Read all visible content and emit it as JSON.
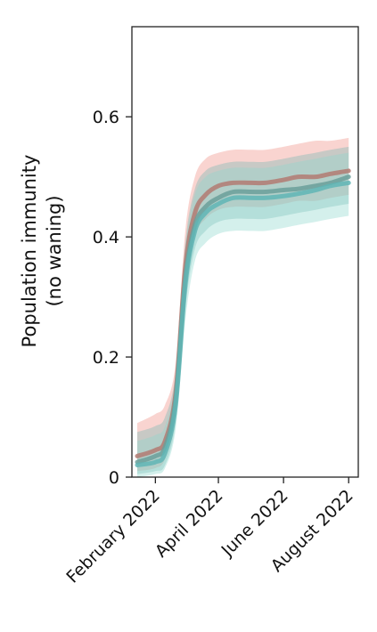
{
  "chart_data": {
    "type": "line",
    "ylabel_lines": [
      "Population immunity",
      "(no waning)"
    ],
    "xlabel": "",
    "ylim": [
      0,
      0.75
    ],
    "yticks": [
      {
        "value": 0,
        "label": "0"
      },
      {
        "value": 0.2,
        "label": "0.2"
      },
      {
        "value": 0.4,
        "label": "0.4"
      },
      {
        "value": 0.6,
        "label": "0.6"
      }
    ],
    "xticks": [
      {
        "value": "2022-02-01",
        "label": "February 2022"
      },
      {
        "value": "2022-04-01",
        "label": "April 2022"
      },
      {
        "value": "2022-06-01",
        "label": "June 2022"
      },
      {
        "value": "2022-08-01",
        "label": "August 2022"
      }
    ],
    "xlim": [
      "2022-01-10",
      "2022-08-10"
    ],
    "grid": false,
    "legend": "none",
    "series": [
      {
        "color": "#f08f84",
        "line_color": "#b27a72",
        "x": [
          "2022-01-15",
          "2022-02-01",
          "2022-02-10",
          "2022-02-20",
          "2022-03-01",
          "2022-03-10",
          "2022-03-20",
          "2022-04-01",
          "2022-04-15",
          "2022-05-01",
          "2022-05-15",
          "2022-06-01",
          "2022-06-15",
          "2022-07-01",
          "2022-07-15",
          "2022-08-01"
        ],
        "values": [
          0.035,
          0.045,
          0.06,
          0.14,
          0.35,
          0.44,
          0.47,
          0.485,
          0.49,
          0.49,
          0.49,
          0.495,
          0.5,
          0.5,
          0.505,
          0.51
        ],
        "lower": [
          0.01,
          0.015,
          0.03,
          0.1,
          0.3,
          0.4,
          0.43,
          0.445,
          0.45,
          0.45,
          0.45,
          0.455,
          0.46,
          0.46,
          0.465,
          0.47
        ],
        "upper": [
          0.09,
          0.105,
          0.12,
          0.19,
          0.41,
          0.5,
          0.53,
          0.54,
          0.545,
          0.545,
          0.545,
          0.55,
          0.555,
          0.56,
          0.56,
          0.565
        ]
      },
      {
        "color": "#7ab9b2",
        "line_color": "#6a9f9a",
        "x": [
          "2022-01-15",
          "2022-02-01",
          "2022-02-10",
          "2022-02-20",
          "2022-03-01",
          "2022-03-10",
          "2022-03-20",
          "2022-04-01",
          "2022-04-15",
          "2022-05-01",
          "2022-05-15",
          "2022-06-01",
          "2022-06-15",
          "2022-07-01",
          "2022-07-15",
          "2022-08-01"
        ],
        "values": [
          0.025,
          0.035,
          0.05,
          0.13,
          0.33,
          0.42,
          0.45,
          0.465,
          0.475,
          0.475,
          0.475,
          0.478,
          0.48,
          0.485,
          0.49,
          0.5
        ],
        "lower": [
          0.005,
          0.01,
          0.02,
          0.09,
          0.28,
          0.38,
          0.41,
          0.425,
          0.43,
          0.43,
          0.43,
          0.435,
          0.44,
          0.445,
          0.45,
          0.455
        ],
        "upper": [
          0.075,
          0.085,
          0.1,
          0.175,
          0.39,
          0.48,
          0.51,
          0.52,
          0.525,
          0.525,
          0.525,
          0.53,
          0.535,
          0.54,
          0.545,
          0.55
        ]
      },
      {
        "color": "#8fd8cc",
        "line_color": "#5fb5b5",
        "x": [
          "2022-01-15",
          "2022-02-01",
          "2022-02-10",
          "2022-02-20",
          "2022-03-01",
          "2022-03-10",
          "2022-03-20",
          "2022-04-01",
          "2022-04-15",
          "2022-05-01",
          "2022-05-15",
          "2022-06-01",
          "2022-06-15",
          "2022-07-01",
          "2022-07-15",
          "2022-08-01"
        ],
        "values": [
          0.02,
          0.025,
          0.04,
          0.12,
          0.32,
          0.41,
          0.44,
          0.455,
          0.465,
          0.465,
          0.465,
          0.468,
          0.472,
          0.478,
          0.485,
          0.49
        ],
        "lower": [
          0.0,
          0.005,
          0.015,
          0.08,
          0.26,
          0.36,
          0.39,
          0.405,
          0.41,
          0.41,
          0.41,
          0.415,
          0.42,
          0.425,
          0.43,
          0.435
        ],
        "upper": [
          0.06,
          0.07,
          0.085,
          0.165,
          0.38,
          0.47,
          0.5,
          0.51,
          0.515,
          0.515,
          0.515,
          0.52,
          0.525,
          0.53,
          0.535,
          0.54
        ]
      }
    ]
  }
}
